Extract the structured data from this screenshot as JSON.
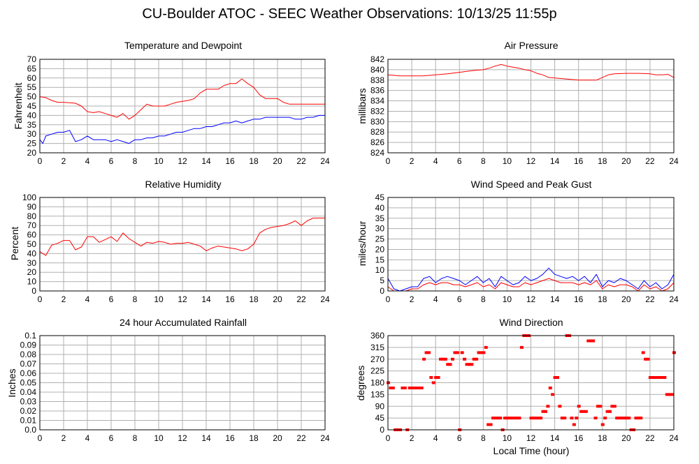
{
  "page_title": "CU-Boulder ATOC - SEEC Weather Observations: 10/13/25 11:55p",
  "bottom_xlabel": "Local Time (hour)",
  "x_ticks": [
    "0",
    "2",
    "4",
    "6",
    "8",
    "10",
    "12",
    "14",
    "16",
    "18",
    "20",
    "22",
    "24"
  ],
  "colors": {
    "red": "#ff0000",
    "blue": "#0000ff",
    "grid": "#b0b0b0",
    "frame": "#000000"
  },
  "chart_data": [
    {
      "id": "temp",
      "type": "line",
      "title": "Temperature and Dewpoint",
      "ylabel": "Fahrenheit",
      "ylim": [
        20,
        70
      ],
      "yticks": [
        "20",
        "25",
        "30",
        "35",
        "40",
        "45",
        "50",
        "55",
        "60",
        "65",
        "70"
      ],
      "xlim": [
        0,
        24
      ],
      "grid": true,
      "series": [
        {
          "color": "red",
          "x": [
            0,
            0.5,
            1,
            1.5,
            2,
            2.5,
            3,
            3.5,
            4,
            4.5,
            5,
            5.5,
            6,
            6.5,
            7,
            7.5,
            8,
            8.5,
            9,
            9.5,
            10,
            10.5,
            11,
            11.5,
            12,
            12.5,
            13,
            13.5,
            14,
            14.5,
            15,
            15.5,
            16,
            16.5,
            17,
            17.5,
            18,
            18.5,
            19,
            19.5,
            20,
            20.5,
            21,
            21.5,
            22,
            22.5,
            23,
            23.5,
            24
          ],
          "y": [
            50,
            49.5,
            48,
            47,
            47,
            46.8,
            46.5,
            45,
            42,
            41.5,
            42,
            41,
            40,
            39,
            41,
            38,
            40,
            43,
            46,
            45,
            45,
            45,
            46,
            47,
            47.5,
            48,
            49,
            52,
            54,
            54,
            54,
            56,
            57,
            57,
            59.5,
            57,
            55,
            51,
            49,
            49,
            49,
            47,
            46,
            46,
            46,
            46,
            46,
            46,
            46
          ]
        },
        {
          "color": "blue",
          "x": [
            0,
            0.25,
            0.5,
            1,
            1.5,
            2,
            2.5,
            3,
            3.5,
            4,
            4.5,
            5,
            5.5,
            6,
            6.5,
            7,
            7.5,
            8,
            8.5,
            9,
            9.5,
            10,
            10.5,
            11,
            11.5,
            12,
            12.5,
            13,
            13.5,
            14,
            14.5,
            15,
            15.5,
            16,
            16.5,
            17,
            17.5,
            18,
            18.5,
            19,
            19.5,
            20,
            20.5,
            21,
            21.5,
            22,
            22.5,
            23,
            23.5,
            24
          ],
          "y": [
            27,
            25,
            29,
            30,
            31,
            31,
            32,
            26,
            27,
            29,
            27,
            27,
            27,
            26,
            27,
            26,
            25,
            27,
            27,
            28,
            28,
            29,
            29,
            30,
            31,
            31,
            32,
            33,
            33,
            34,
            34,
            35,
            36,
            36,
            37,
            36,
            37,
            38,
            38,
            39,
            39,
            39,
            39,
            39,
            38,
            38,
            39,
            39,
            40,
            40
          ]
        }
      ]
    },
    {
      "id": "pressure",
      "type": "line",
      "title": "Air Pressure",
      "ylabel": "millibars",
      "ylim": [
        824,
        842
      ],
      "yticks": [
        "824",
        "826",
        "828",
        "830",
        "832",
        "834",
        "836",
        "838",
        "840",
        "842"
      ],
      "xlim": [
        0,
        24
      ],
      "grid": true,
      "series": [
        {
          "color": "red",
          "x": [
            0,
            1,
            2,
            3,
            4,
            5,
            6,
            7,
            8,
            8.5,
            9,
            9.5,
            10,
            10.5,
            11,
            11.5,
            12,
            12.5,
            13,
            13.5,
            14,
            14.5,
            15,
            16,
            17,
            17.5,
            18,
            18.5,
            19,
            20,
            21,
            22,
            22.5,
            23,
            23.5,
            24
          ],
          "y": [
            839,
            838.8,
            838.8,
            838.8,
            839,
            839.2,
            839.5,
            839.8,
            840,
            840.3,
            840.7,
            841,
            840.7,
            840.5,
            840.3,
            840,
            839.8,
            839.3,
            839,
            838.5,
            838.4,
            838.3,
            838.2,
            838,
            838,
            838,
            838.5,
            839,
            839.2,
            839.3,
            839.3,
            839.2,
            839,
            839,
            839.1,
            838.5
          ]
        }
      ]
    },
    {
      "id": "humidity",
      "type": "line",
      "title": "Relative Humidity",
      "ylabel": "Percent",
      "ylim": [
        0,
        100
      ],
      "yticks": [
        "0",
        "10",
        "20",
        "30",
        "40",
        "50",
        "60",
        "70",
        "80",
        "90",
        "100"
      ],
      "xlim": [
        0,
        24
      ],
      "grid": true,
      "series": [
        {
          "color": "red",
          "x": [
            0,
            0.5,
            1,
            1.5,
            2,
            2.5,
            3,
            3.5,
            4,
            4.5,
            5,
            5.5,
            6,
            6.5,
            7,
            7.5,
            8,
            8.5,
            9,
            9.5,
            10,
            10.5,
            11,
            11.5,
            12,
            12.5,
            13,
            13.5,
            14,
            14.5,
            15,
            15.5,
            16,
            16.5,
            17,
            17.5,
            18,
            18.5,
            19,
            19.5,
            20,
            20.5,
            21,
            21.5,
            22,
            22.5,
            23,
            23.5,
            24
          ],
          "y": [
            42,
            38,
            49,
            51,
            54,
            54,
            44,
            47,
            58,
            58,
            52,
            55,
            58,
            53,
            62,
            56,
            52,
            48,
            52,
            51,
            53,
            52,
            50,
            51,
            51,
            52,
            50,
            48,
            43,
            46,
            48,
            47,
            46,
            45,
            43,
            45,
            50,
            62,
            66,
            68,
            69,
            70,
            72,
            75,
            70,
            75,
            78,
            78,
            78
          ]
        }
      ]
    },
    {
      "id": "wind",
      "type": "line",
      "title": "Wind Speed and Peak Gust",
      "ylabel": "miles/hour",
      "ylim": [
        0,
        45
      ],
      "yticks": [
        "0",
        "5",
        "10",
        "15",
        "20",
        "25",
        "30",
        "35",
        "40",
        "45"
      ],
      "xlim": [
        0,
        24
      ],
      "grid": true,
      "series": [
        {
          "color": "blue",
          "x": [
            0,
            0.5,
            1,
            1.5,
            2,
            2.5,
            3,
            3.5,
            4,
            4.5,
            5,
            5.5,
            6,
            6.5,
            7,
            7.5,
            8,
            8.5,
            9,
            9.5,
            10,
            10.5,
            11,
            11.5,
            12,
            12.5,
            13,
            13.5,
            14,
            14.5,
            15,
            15.5,
            16,
            16.5,
            17,
            17.5,
            18,
            18.5,
            19,
            19.5,
            20,
            20.5,
            21,
            21.5,
            22,
            22.5,
            23,
            23.5,
            24
          ],
          "y": [
            6,
            1,
            0,
            1,
            2,
            2,
            6,
            7,
            4,
            6,
            7,
            6,
            5,
            3,
            5,
            7,
            4,
            6,
            2,
            7,
            5,
            3,
            4,
            7,
            5,
            6,
            8,
            11,
            8,
            7,
            6,
            7,
            5,
            7,
            4,
            8,
            2,
            5,
            4,
            6,
            5,
            3,
            1,
            5,
            2,
            4,
            1,
            3,
            8
          ]
        },
        {
          "color": "red",
          "x": [
            0,
            0.5,
            1,
            1.5,
            2,
            2.5,
            3,
            3.5,
            4,
            4.5,
            5,
            5.5,
            6,
            6.5,
            7,
            7.5,
            8,
            8.5,
            9,
            9.5,
            10,
            10.5,
            11,
            11.5,
            12,
            12.5,
            13,
            13.5,
            14,
            14.5,
            15,
            15.5,
            16,
            16.5,
            17,
            17.5,
            18,
            18.5,
            19,
            19.5,
            20,
            20.5,
            21,
            21.5,
            22,
            22.5,
            23,
            23.5,
            24
          ],
          "y": [
            2,
            0,
            0,
            0,
            1,
            1,
            3,
            4,
            3,
            4,
            4,
            3,
            3,
            2,
            3,
            4,
            2,
            3,
            1,
            4,
            3,
            2,
            2,
            4,
            3,
            4,
            5,
            6,
            5,
            4,
            4,
            4,
            3,
            4,
            3,
            5,
            1,
            3,
            2,
            3,
            3,
            2,
            0,
            3,
            1,
            2,
            0,
            1,
            4
          ]
        }
      ]
    },
    {
      "id": "rain",
      "type": "line",
      "title": "24 hour Accumulated Rainfall",
      "ylabel": "Inches",
      "ylim": [
        0,
        0.1
      ],
      "yticks": [
        "0.0",
        "0.01",
        "0.02",
        "0.03",
        "0.04",
        "0.05",
        "0.06",
        "0.07",
        "0.08",
        "0.09",
        "0.1"
      ],
      "xlim": [
        0,
        24
      ],
      "grid": true,
      "series": [
        {
          "color": "red",
          "x": [
            0,
            24
          ],
          "y": [
            0,
            0
          ]
        }
      ]
    },
    {
      "id": "direction",
      "type": "scatter",
      "title": "Wind Direction",
      "ylabel": "degrees",
      "ylim": [
        0,
        360
      ],
      "yticks": [
        "0",
        "45",
        "90",
        "135",
        "180",
        "225",
        "270",
        "315",
        "360"
      ],
      "xlim": [
        0,
        24
      ],
      "grid": true,
      "series": [
        {
          "color": "red",
          "x": [
            0,
            0.2,
            0.4,
            0.6,
            0.8,
            1,
            1.2,
            1.4,
            1.6,
            1.8,
            2,
            2.2,
            2.4,
            2.6,
            2.8,
            3,
            3.2,
            3.4,
            3.6,
            3.8,
            4,
            4.2,
            4.4,
            4.6,
            4.8,
            5,
            5.2,
            5.4,
            5.6,
            5.8,
            6,
            6.2,
            6.4,
            6.6,
            6.8,
            7,
            7.2,
            7.4,
            7.6,
            7.8,
            8,
            8.2,
            8.4,
            8.6,
            8.8,
            9,
            9.2,
            9.4,
            9.6,
            9.8,
            10,
            10.2,
            10.4,
            10.6,
            10.8,
            11,
            11.2,
            11.4,
            11.6,
            11.8,
            12,
            12.2,
            12.4,
            12.6,
            12.8,
            13,
            13.2,
            13.4,
            13.6,
            13.8,
            14,
            14.2,
            14.4,
            14.6,
            14.8,
            15,
            15.2,
            15.4,
            15.6,
            15.8,
            16,
            16.2,
            16.4,
            16.6,
            16.8,
            17,
            17.2,
            17.4,
            17.6,
            17.8,
            18,
            18.2,
            18.4,
            18.6,
            18.8,
            19,
            19.2,
            19.4,
            19.6,
            19.8,
            20,
            20.2,
            20.4,
            20.6,
            20.8,
            21,
            21.2,
            21.4,
            21.6,
            21.8,
            22,
            22.2,
            22.4,
            22.6,
            22.8,
            23,
            23.2,
            23.4,
            23.6,
            23.8,
            24
          ],
          "y": [
            180,
            160,
            160,
            0,
            0,
            0,
            160,
            160,
            0,
            160,
            160,
            160,
            160,
            160,
            160,
            270,
            295,
            295,
            200,
            180,
            200,
            200,
            270,
            270,
            270,
            250,
            250,
            270,
            295,
            295,
            0,
            295,
            270,
            250,
            250,
            250,
            270,
            270,
            295,
            295,
            295,
            315,
            20,
            20,
            45,
            45,
            45,
            45,
            0,
            45,
            45,
            45,
            45,
            45,
            45,
            45,
            315,
            360,
            360,
            360,
            45,
            45,
            45,
            45,
            45,
            70,
            70,
            90,
            160,
            135,
            200,
            200,
            90,
            45,
            45,
            360,
            360,
            45,
            20,
            45,
            90,
            70,
            70,
            70,
            340,
            340,
            340,
            45,
            90,
            90,
            20,
            45,
            70,
            70,
            90,
            90,
            45,
            45,
            45,
            45,
            45,
            45,
            0,
            0,
            45,
            45,
            45,
            295,
            270,
            270,
            200,
            200,
            200,
            200,
            200,
            200,
            200,
            135,
            135,
            135,
            295
          ]
        }
      ]
    }
  ]
}
